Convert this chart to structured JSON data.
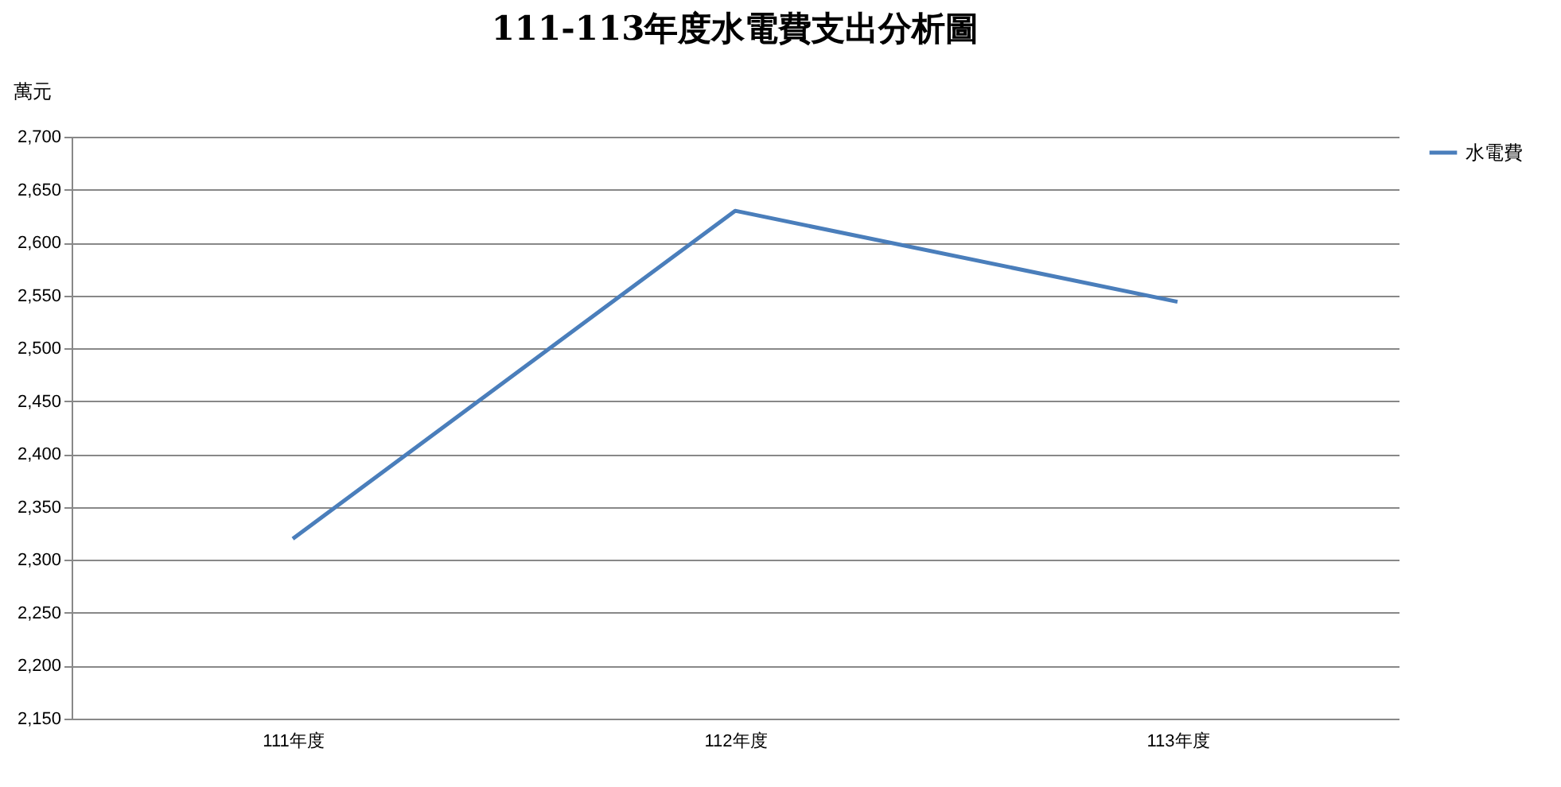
{
  "chart_data": {
    "type": "line",
    "title": "111-113年度水電費支出分析圖",
    "ylabel": "萬元",
    "categories": [
      "111年度",
      "112年度",
      "113年度"
    ],
    "series": [
      {
        "name": "水電費",
        "color": "#4a7ebb",
        "values": [
          2320,
          2630,
          2544
        ]
      }
    ],
    "ylim": [
      2150,
      2700
    ],
    "yticks": [
      {
        "value": 2150,
        "label": "2,150"
      },
      {
        "value": 2200,
        "label": "2,200"
      },
      {
        "value": 2250,
        "label": "2,250"
      },
      {
        "value": 2300,
        "label": "2,300"
      },
      {
        "value": 2350,
        "label": "2,350"
      },
      {
        "value": 2400,
        "label": "2,400"
      },
      {
        "value": 2450,
        "label": "2,450"
      },
      {
        "value": 2500,
        "label": "2,500"
      },
      {
        "value": 2550,
        "label": "2,550"
      },
      {
        "value": 2600,
        "label": "2,600"
      },
      {
        "value": 2650,
        "label": "2,650"
      },
      {
        "value": 2700,
        "label": "2,700"
      }
    ],
    "grid": "y",
    "legend": "right",
    "marker": "none",
    "line_style": "solid"
  }
}
